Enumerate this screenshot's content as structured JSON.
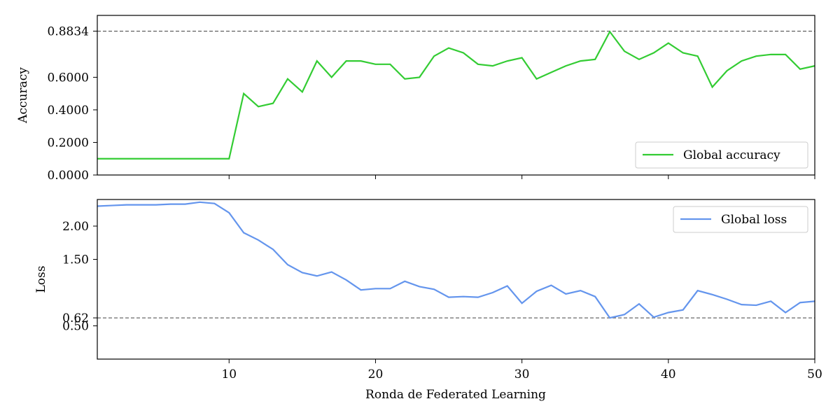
{
  "chart_data": [
    {
      "type": "line",
      "ylabel": "Accuracy",
      "xlabel": "",
      "xlim": [
        1,
        50
      ],
      "ylim": [
        0,
        0.98
      ],
      "yticks": [
        0.0,
        0.2,
        0.4,
        0.6,
        0.8834
      ],
      "ytick_labels": [
        "0.0000",
        "0.2000",
        "0.4000",
        "0.6000",
        "0.8834"
      ],
      "reference_line": {
        "y": 0.8834,
        "style": "dashed"
      },
      "legend_position": "lower-right",
      "series": [
        {
          "name": "Global accuracy",
          "color": "#33cc33",
          "x": [
            1,
            2,
            3,
            4,
            5,
            6,
            7,
            8,
            9,
            10,
            11,
            12,
            13,
            14,
            15,
            16,
            17,
            18,
            19,
            20,
            21,
            22,
            23,
            24,
            25,
            26,
            27,
            28,
            29,
            30,
            31,
            32,
            33,
            34,
            35,
            36,
            37,
            38,
            39,
            40,
            41,
            42,
            43,
            44,
            45,
            46,
            47,
            48,
            49,
            50
          ],
          "values": [
            0.1,
            0.1,
            0.1,
            0.1,
            0.1,
            0.1,
            0.1,
            0.1,
            0.1,
            0.1,
            0.5,
            0.42,
            0.44,
            0.59,
            0.51,
            0.7,
            0.6,
            0.7,
            0.7,
            0.68,
            0.68,
            0.59,
            0.6,
            0.73,
            0.78,
            0.75,
            0.68,
            0.67,
            0.7,
            0.72,
            0.59,
            0.63,
            0.67,
            0.7,
            0.71,
            0.88,
            0.76,
            0.71,
            0.75,
            0.81,
            0.75,
            0.73,
            0.54,
            0.64,
            0.7,
            0.73,
            0.74,
            0.74,
            0.65,
            0.67
          ]
        }
      ]
    },
    {
      "type": "line",
      "ylabel": "Loss",
      "xlabel": "Ronda de Federated Learning",
      "xlim": [
        1,
        50
      ],
      "ylim": [
        0.0,
        2.4
      ],
      "yticks": [
        0.5,
        0.62,
        1.5,
        2.0
      ],
      "ytick_labels": [
        "0.50",
        "0.62",
        "1.50",
        "2.00"
      ],
      "xticks": [
        10,
        20,
        30,
        40,
        50
      ],
      "xtick_labels": [
        "10",
        "20",
        "30",
        "40",
        "50"
      ],
      "reference_line": {
        "y": 0.62,
        "style": "dashed"
      },
      "legend_position": "top-right",
      "series": [
        {
          "name": "Global loss",
          "color": "#6495ed",
          "x": [
            1,
            2,
            3,
            4,
            5,
            6,
            7,
            8,
            9,
            10,
            11,
            12,
            13,
            14,
            15,
            16,
            17,
            18,
            19,
            20,
            21,
            22,
            23,
            24,
            25,
            26,
            27,
            28,
            29,
            30,
            31,
            32,
            33,
            34,
            35,
            36,
            37,
            38,
            39,
            40,
            41,
            42,
            43,
            44,
            45,
            46,
            47,
            48,
            49,
            50
          ],
          "values": [
            2.3,
            2.31,
            2.32,
            2.32,
            2.32,
            2.33,
            2.33,
            2.36,
            2.34,
            2.2,
            1.9,
            1.79,
            1.65,
            1.42,
            1.3,
            1.25,
            1.31,
            1.19,
            1.04,
            1.06,
            1.06,
            1.17,
            1.09,
            1.05,
            0.93,
            0.94,
            0.93,
            1.0,
            1.1,
            0.84,
            1.02,
            1.11,
            0.98,
            1.03,
            0.94,
            0.62,
            0.67,
            0.83,
            0.63,
            0.7,
            0.74,
            1.03,
            0.97,
            0.9,
            0.82,
            0.81,
            0.87,
            0.7,
            0.85,
            0.87
          ]
        }
      ]
    }
  ]
}
